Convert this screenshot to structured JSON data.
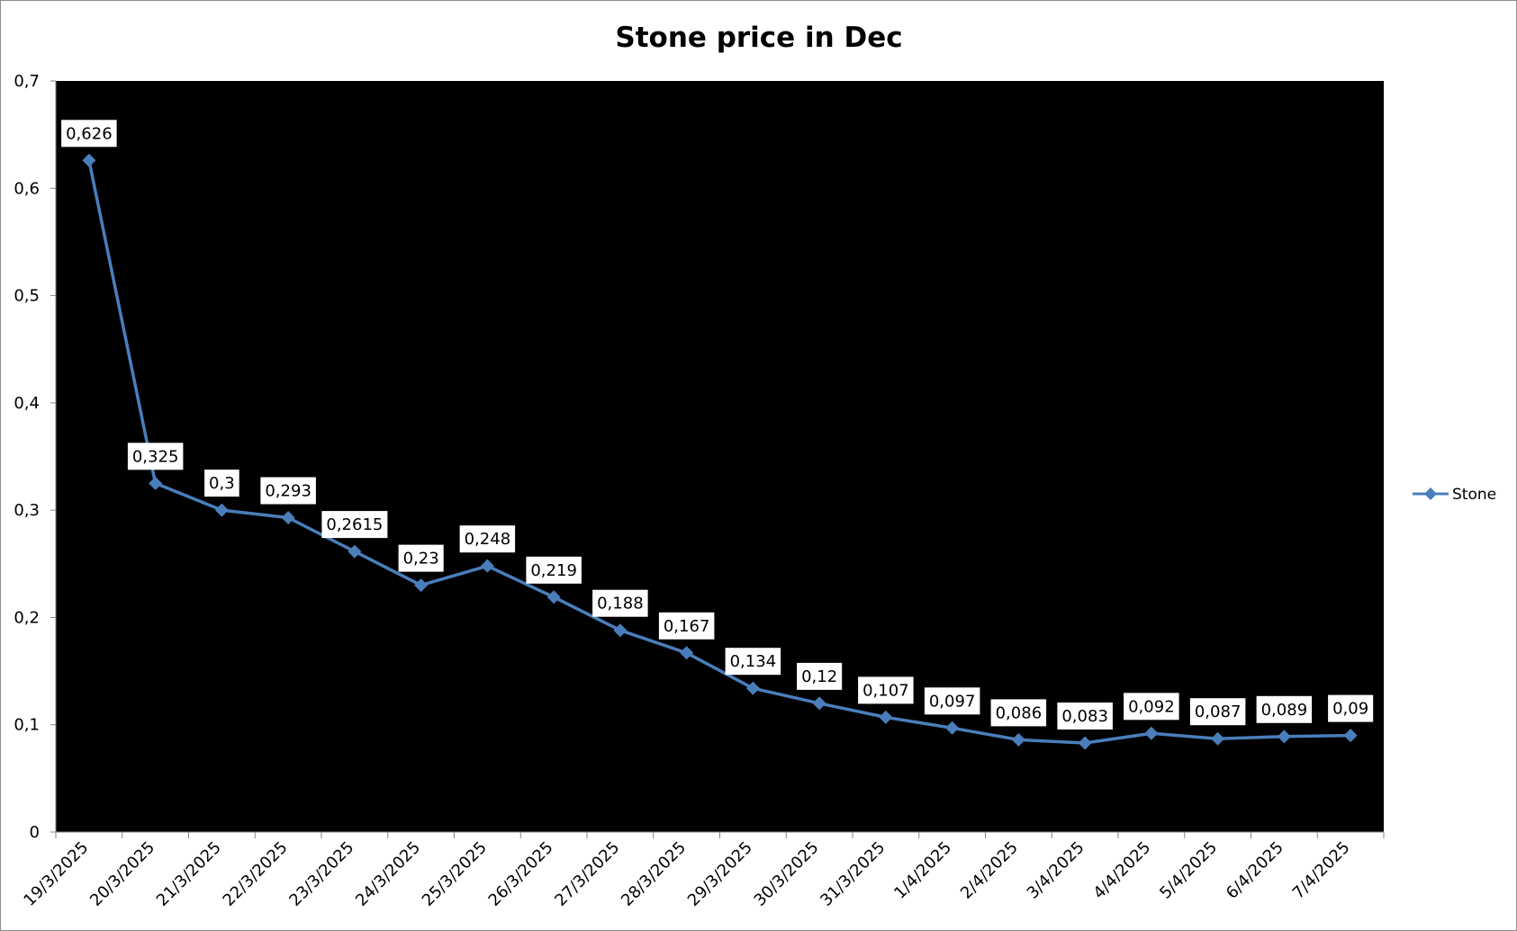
{
  "chart_data": {
    "type": "line",
    "title": "Stone price in Dec",
    "xlabel": "",
    "ylabel": "",
    "ylim": [
      0,
      0.7
    ],
    "yticks": [
      "0",
      "0,1",
      "0,2",
      "0,3",
      "0,4",
      "0,5",
      "0,6",
      "0,7"
    ],
    "grid": false,
    "legend_position": "right",
    "plot_background": "#000000",
    "categories": [
      "19/3/2025",
      "20/3/2025",
      "21/3/2025",
      "22/3/2025",
      "23/3/2025",
      "24/3/2025",
      "25/3/2025",
      "26/3/2025",
      "27/3/2025",
      "28/3/2025",
      "29/3/2025",
      "30/3/2025",
      "31/3/2025",
      "1/4/2025",
      "2/4/2025",
      "3/4/2025",
      "4/4/2025",
      "5/4/2025",
      "6/4/2025",
      "7/4/2025"
    ],
    "series": [
      {
        "name": "Stone",
        "color": "#4a7ebb",
        "marker": "diamond",
        "values": [
          0.626,
          0.325,
          0.3,
          0.293,
          0.2615,
          0.23,
          0.248,
          0.219,
          0.188,
          0.167,
          0.134,
          0.12,
          0.107,
          0.097,
          0.086,
          0.083,
          0.092,
          0.087,
          0.089,
          0.09
        ],
        "labels": [
          "0,626",
          "0,325",
          "0,3",
          "0,293",
          "0,2615",
          "0,23",
          "0,248",
          "0,219",
          "0,188",
          "0,167",
          "0,134",
          "0,12",
          "0,107",
          "0,097",
          "0,086",
          "0,083",
          "0,092",
          "0,087",
          "0,089",
          "0,09"
        ]
      }
    ]
  }
}
